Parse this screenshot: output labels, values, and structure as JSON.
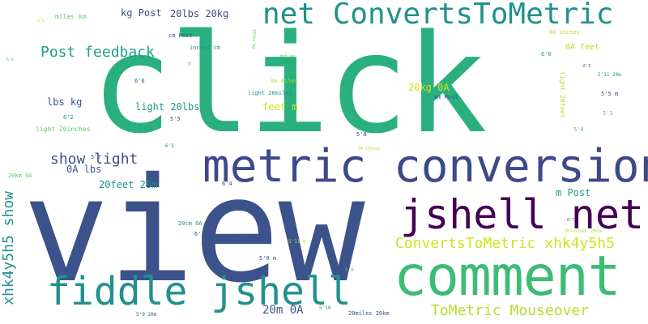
{
  "colors": {
    "dark_purple": "#440154",
    "indigo": "#3b528b",
    "teal": "#21918c",
    "sea_green": "#1f9e89",
    "green": "#2ab07f",
    "light_green": "#5ec962",
    "lime": "#b5de2b",
    "yellow": "#d2e21b",
    "background": "#ffffff"
  },
  "words": {
    "view": "view",
    "click": "click",
    "metric_conversion": "metric conversion",
    "comment": "comment",
    "jshell_net": "jshell net",
    "fiddle_jshell": "fiddle jshell",
    "net_convertstometric": "net ConvertsToMetric",
    "convertstometric_xhk": "ConvertsToMetric xhk4y5h5",
    "xhk4y5h5_show": "xhk4y5h5 show",
    "tometric_mouseover": "ToMetric Mouseover",
    "post_feedback": "Post feedback",
    "show_light": "show light",
    "kg_post": "kg Post",
    "lbs20_kg20": "20lbs 20kg",
    "miles_km": "miles km",
    "lbs_kg": "lbs kg",
    "light_20lbs": "light 20lbs",
    "feet_m": "feet m",
    "kg20_0a": "20kg 0A",
    "light_20inches": "light 20inches",
    "oa_lbs": "0A lbs",
    "feet20_20m": "20feet 20m",
    "m_post": "m Post",
    "m20_0a": "20m 0A",
    "cm_post": "cm Post",
    "inches_cm": "inches cm",
    "oa_inches": "0A inches",
    "oa_feet": "0A feet",
    "oa_miles": "0A miles",
    "light_20miles": "light 20miles",
    "light_20feet": "light 20feet",
    "km_post": "km Post",
    "cm20_0a": "20cm 0A",
    "km20_0a": "20km 0A",
    "inches20_20cm": "20inches 20cm",
    "miles20_20km": "20miles 20km",
    "oa_20feet": "0A 20feet",
    "mph_km": "mph km",
    "lbs20_kg": "20lbs kg",
    "h": "h",
    "h6_6": "6'6",
    "h6_2": "6'2",
    "h5_5": "5'5",
    "h5_7": "5'7",
    "h6_0": "6'0",
    "h5_11_20m": "5'11 20m",
    "h5_5_m": "5'5 m",
    "h5_3": "5'3",
    "h5_4": "5'4",
    "h5_8": "5'8",
    "h6_5": "6'5",
    "h6_4": "6'4",
    "h6_3": "6'3",
    "h5_11_m": "5'11 m",
    "h5_9_m": "5'9 m",
    "h5_6": "5'6",
    "h5_9_20m": "5'9 20m",
    "h5_10": "5'10",
    "h6_1": "6'1",
    "h6_3b": "6'3",
    "h6_7": "6'7",
    "h6_6b": "6'6"
  }
}
